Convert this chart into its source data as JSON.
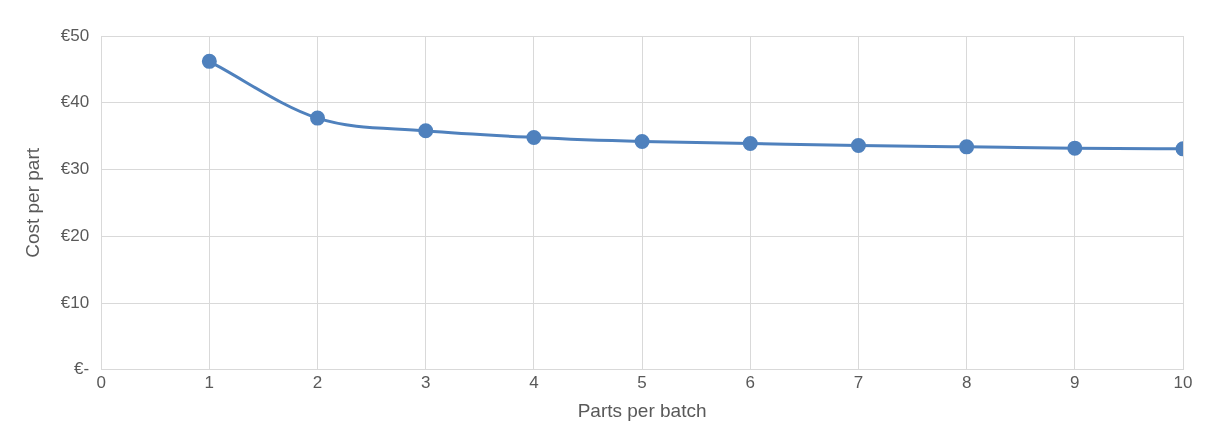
{
  "chart_data": {
    "type": "line",
    "xlabel": "Parts per batch",
    "ylabel": "Cost per part",
    "x": [
      1,
      2,
      3,
      4,
      5,
      6,
      7,
      8,
      9,
      10
    ],
    "series": [
      {
        "color": "#4f81bd",
        "values": [
          46.2,
          37.7,
          35.8,
          34.8,
          34.2,
          33.9,
          33.6,
          33.4,
          33.2,
          33.1
        ]
      }
    ],
    "xlim": [
      0,
      10
    ],
    "xticks": [
      0,
      1,
      2,
      3,
      4,
      5,
      6,
      7,
      8,
      9,
      10
    ],
    "ylim": [
      0,
      50
    ],
    "yticks": [
      {
        "value": 0,
        "label": "€-"
      },
      {
        "value": 10,
        "label": "€10"
      },
      {
        "value": 20,
        "label": "€20"
      },
      {
        "value": 30,
        "label": "€30"
      },
      {
        "value": 40,
        "label": "€40"
      },
      {
        "value": 50,
        "label": "€50"
      }
    ],
    "grid": true,
    "legend": false,
    "marker": "circle",
    "line_style": "solid"
  }
}
